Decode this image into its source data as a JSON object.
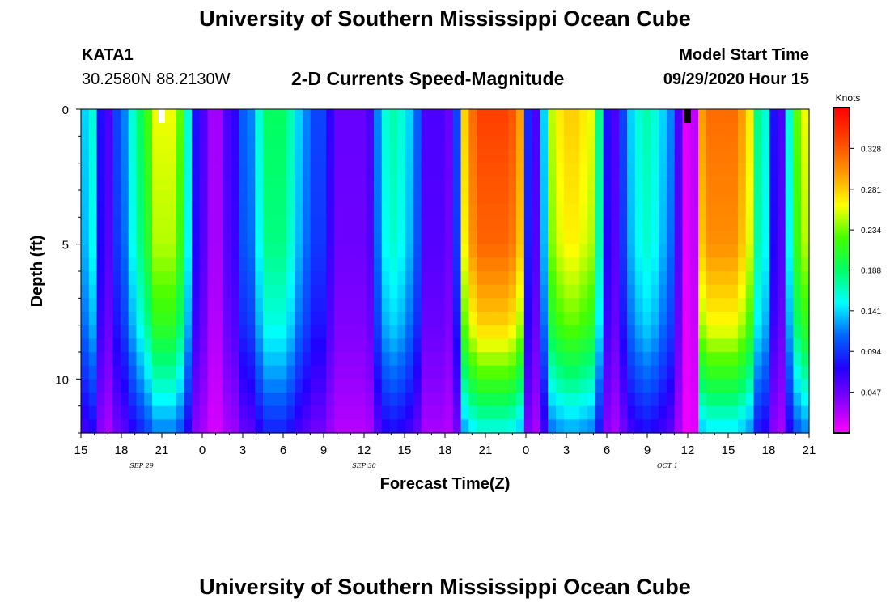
{
  "header": {
    "title": "University of Southern Mississippi Ocean Cube",
    "station_id": "KATA1",
    "station_coords": "30.2580N 88.2130W",
    "chart_title": "2-D Currents Speed-Magnitude",
    "model_start_label": "Model Start Time",
    "model_start_value": "09/29/2020 Hour 15"
  },
  "footer": {
    "title": "University of Southern Mississippi Ocean Cube"
  },
  "chart_data": {
    "type": "heatmap",
    "title": "2-D Currents Speed-Magnitude",
    "xlabel": "Forecast Time(Z)",
    "ylabel": "Depth (ft)",
    "colorbar_label": "Knots",
    "x_start_hour": 15,
    "x_end_hour": 69,
    "x_tick_labels": [
      "15",
      "18",
      "21",
      "0",
      "3",
      "6",
      "9",
      "12",
      "15",
      "18",
      "21",
      "0",
      "3",
      "6",
      "9",
      "12",
      "15",
      "18",
      "21"
    ],
    "date_labels": [
      {
        "label": "SEP 29",
        "hour": 19.5
      },
      {
        "label": "SEP 30",
        "hour": 36
      },
      {
        "label": "OCT 1",
        "hour": 58.5
      }
    ],
    "ylim": [
      0,
      12
    ],
    "y_ticks": [
      0,
      5,
      10
    ],
    "y_inverted": true,
    "colorbar_ticks": [
      "0.047",
      "0.094",
      "0.141",
      "0.188",
      "0.234",
      "0.281",
      "0.328"
    ],
    "colorbar_range": [
      0,
      0.375
    ],
    "colormap": [
      "#ff00ff",
      "#8800ff",
      "#2200ff",
      "#0066ff",
      "#00ffff",
      "#00ff66",
      "#44ff00",
      "#ffff00",
      "#ff9900",
      "#ff4400",
      "#ff0000"
    ],
    "surface_speed_by_half_hour_estimated": [
      0.14,
      0.16,
      0.08,
      0.06,
      0.1,
      0.12,
      0.16,
      0.19,
      0.22,
      0.26,
      0.26,
      0.26,
      0.23,
      0.16,
      0.08,
      0.06,
      0.03,
      0.03,
      0.06,
      0.07,
      0.11,
      0.12,
      0.16,
      0.19,
      0.19,
      0.19,
      0.17,
      0.14,
      0.12,
      0.1,
      0.1,
      0.07,
      0.05,
      0.05,
      0.05,
      0.05,
      0.06,
      0.12,
      0.16,
      0.17,
      0.16,
      0.14,
      0.11,
      0.06,
      0.06,
      0.06,
      0.05,
      0.1,
      0.28,
      0.32,
      0.34,
      0.34,
      0.34,
      0.34,
      0.33,
      0.3,
      0.09,
      0.06,
      0.14,
      0.25,
      0.27,
      0.28,
      0.28,
      0.27,
      0.26,
      0.18,
      0.08,
      0.06,
      0.1,
      0.14,
      0.16,
      0.17,
      0.16,
      0.14,
      0.12,
      0.06,
      0.01,
      0.02,
      0.3,
      0.32,
      0.32,
      0.32,
      0.32,
      0.3,
      0.27,
      0.18,
      0.16,
      0.08,
      0.06,
      0.16,
      0.23,
      0.26
    ],
    "depth_profile_estimated": [
      {
        "depth_ft": 0,
        "factor": 1.0
      },
      {
        "depth_ft": 5,
        "factor": 0.95
      },
      {
        "depth_ft": 8,
        "factor": 0.82
      },
      {
        "depth_ft": 10,
        "factor": 0.65
      },
      {
        "depth_ft": 12,
        "factor": 0.45
      }
    ],
    "markers": [
      {
        "hour": 21,
        "color": "#ffffff"
      },
      {
        "hour": 60,
        "color": "#000000"
      }
    ]
  }
}
